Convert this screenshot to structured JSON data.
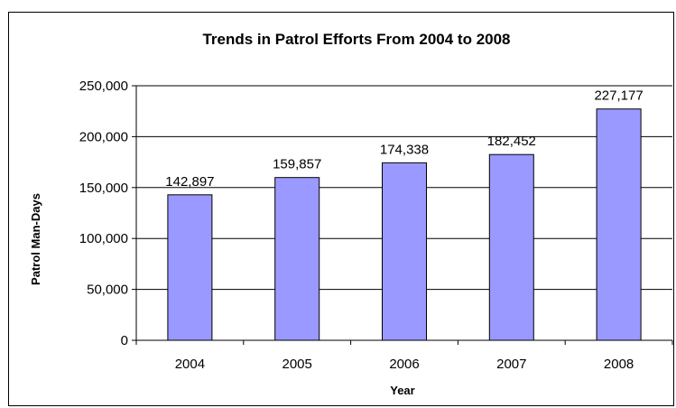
{
  "chart_data": {
    "type": "bar",
    "title": "Trends in Patrol Efforts From 2004 to 2008",
    "xlabel": "Year",
    "ylabel": "Patrol Man-Days",
    "categories": [
      "2004",
      "2005",
      "2006",
      "2007",
      "2008"
    ],
    "values": [
      142897,
      159857,
      174338,
      182452,
      227177
    ],
    "data_labels": [
      "142,897",
      "159,857",
      "174,338",
      "182,452",
      "227,177"
    ],
    "ylim": [
      0,
      250000
    ],
    "yticks": [
      0,
      50000,
      100000,
      150000,
      200000,
      250000
    ],
    "ytick_labels": [
      "0",
      "50,000",
      "100,000",
      "150,000",
      "200,000",
      "250,000"
    ],
    "grid": true,
    "colors": {
      "bar_fill": "#9999ff",
      "bar_stroke": "#000000"
    }
  }
}
